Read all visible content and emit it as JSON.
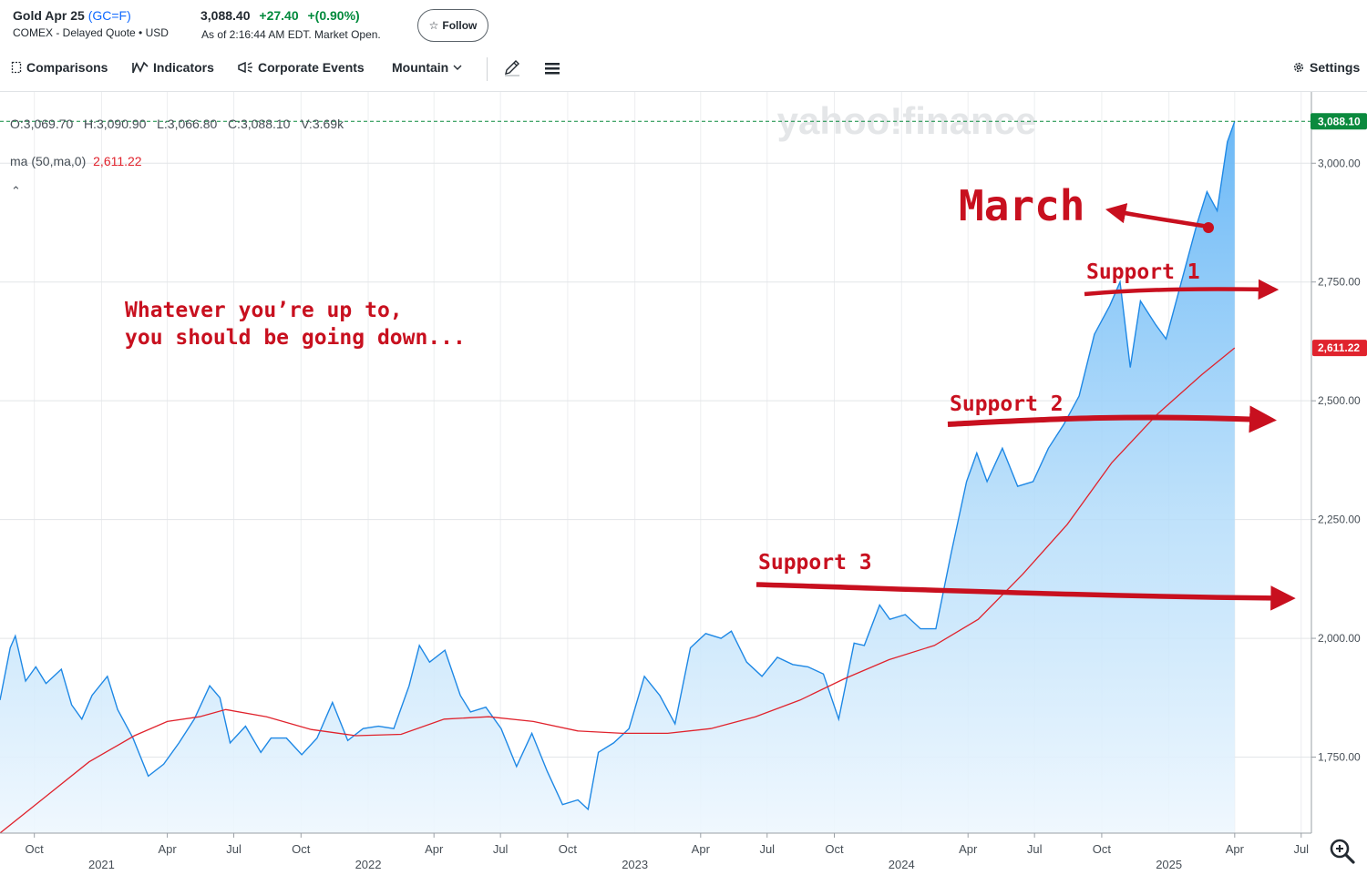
{
  "header": {
    "name": "Gold Apr 25",
    "ticker": "(GC=F)",
    "exchange": "COMEX - Delayed Quote • USD",
    "price": "3,088.40",
    "change": "+27.40",
    "change_pct": "+(0.90%)",
    "as_of": "As of 2:16:44 AM EDT. Market Open.",
    "follow_label": "Follow",
    "follow_icon": "star-outline-icon"
  },
  "toolbar": {
    "comparisons": "Comparisons",
    "indicators": "Indicators",
    "events": "Corporate Events",
    "chart_type": "Mountain",
    "settings": "Settings",
    "icons": [
      "compare-icon",
      "indicators-icon",
      "megaphone-icon",
      "chevron-down-icon",
      "pencil-icon",
      "menu-icon",
      "gear-icon",
      "zoom-icon"
    ]
  },
  "legend": {
    "ohlc": "O:3,069.70   H:3,090.90   L:3,066.80   C:3,088.10   V:3.69k",
    "ma_label": "ma (50,ma,0)",
    "ma_value": "2,611.22"
  },
  "watermark": "yahoo!finance",
  "annotations": {
    "march": "March",
    "caption_line1": "Whatever you’re up to,",
    "caption_line2": "you should be going down...",
    "support1": "Support 1",
    "support2": "Support 2",
    "support3": "Support 3"
  },
  "chart_data": {
    "type": "area",
    "colors": {
      "area_line": "#1e88e5",
      "ma_line": "#e0232d",
      "annotation": "#c8101f",
      "last_price_badge": "#0b8a3e"
    },
    "y_axis": {
      "ylim": [
        1590,
        3150
      ],
      "ticks": [
        1750,
        2000,
        2250,
        2500,
        2750,
        3000
      ],
      "tick_labels": [
        "1,750.00",
        "2,000.00",
        "2,250.00",
        "2,500.00",
        "2,750.00",
        "3,000.00"
      ]
    },
    "x_axis": {
      "month_labels": [
        {
          "date": "2020-10-01",
          "label": "Oct"
        },
        {
          "date": "2021-04-01",
          "label": "Apr"
        },
        {
          "date": "2021-07-01",
          "label": "Jul"
        },
        {
          "date": "2021-10-01",
          "label": "Oct"
        },
        {
          "date": "2022-04-01",
          "label": "Apr"
        },
        {
          "date": "2022-07-01",
          "label": "Jul"
        },
        {
          "date": "2022-10-01",
          "label": "Oct"
        },
        {
          "date": "2023-04-01",
          "label": "Apr"
        },
        {
          "date": "2023-07-01",
          "label": "Jul"
        },
        {
          "date": "2023-10-01",
          "label": "Oct"
        },
        {
          "date": "2024-04-01",
          "label": "Apr"
        },
        {
          "date": "2024-07-01",
          "label": "Jul"
        },
        {
          "date": "2024-10-01",
          "label": "Oct"
        },
        {
          "date": "2025-04-01",
          "label": "Apr"
        },
        {
          "date": "2025-07-01",
          "label": "Jul"
        }
      ],
      "year_labels": [
        {
          "date": "2021-01-01",
          "label": "2021"
        },
        {
          "date": "2022-01-01",
          "label": "2022"
        },
        {
          "date": "2023-01-01",
          "label": "2023"
        },
        {
          "date": "2024-01-01",
          "label": "2024"
        },
        {
          "date": "2025-01-01",
          "label": "2025"
        }
      ],
      "range": [
        "2020-08-15",
        "2025-07-15"
      ]
    },
    "series": [
      {
        "values": [
          [
            "2020-08-15",
            1870
          ],
          [
            "2020-08-29",
            1980
          ],
          [
            "2020-09-05",
            2005
          ],
          [
            "2020-09-19",
            1910
          ],
          [
            "2020-10-03",
            1940
          ],
          [
            "2020-10-17",
            1905
          ],
          [
            "2020-11-07",
            1935
          ],
          [
            "2020-11-21",
            1860
          ],
          [
            "2020-12-05",
            1830
          ],
          [
            "2020-12-19",
            1880
          ],
          [
            "2021-01-09",
            1920
          ],
          [
            "2021-01-23",
            1850
          ],
          [
            "2021-02-13",
            1790
          ],
          [
            "2021-03-06",
            1710
          ],
          [
            "2021-03-27",
            1735
          ],
          [
            "2021-04-17",
            1780
          ],
          [
            "2021-05-08",
            1830
          ],
          [
            "2021-05-29",
            1900
          ],
          [
            "2021-06-12",
            1875
          ],
          [
            "2021-06-26",
            1780
          ],
          [
            "2021-07-17",
            1815
          ],
          [
            "2021-08-07",
            1760
          ],
          [
            "2021-08-21",
            1790
          ],
          [
            "2021-09-11",
            1790
          ],
          [
            "2021-10-02",
            1755
          ],
          [
            "2021-10-23",
            1790
          ],
          [
            "2021-11-13",
            1865
          ],
          [
            "2021-12-04",
            1785
          ],
          [
            "2021-12-25",
            1810
          ],
          [
            "2022-01-15",
            1815
          ],
          [
            "2022-02-05",
            1810
          ],
          [
            "2022-02-26",
            1900
          ],
          [
            "2022-03-12",
            1985
          ],
          [
            "2022-03-26",
            1950
          ],
          [
            "2022-04-16",
            1975
          ],
          [
            "2022-05-07",
            1880
          ],
          [
            "2022-05-21",
            1845
          ],
          [
            "2022-06-11",
            1855
          ],
          [
            "2022-07-02",
            1810
          ],
          [
            "2022-07-23",
            1730
          ],
          [
            "2022-08-13",
            1800
          ],
          [
            "2022-09-03",
            1720
          ],
          [
            "2022-09-24",
            1650
          ],
          [
            "2022-10-15",
            1660
          ],
          [
            "2022-10-29",
            1640
          ],
          [
            "2022-11-12",
            1760
          ],
          [
            "2022-12-03",
            1780
          ],
          [
            "2022-12-24",
            1810
          ],
          [
            "2023-01-14",
            1920
          ],
          [
            "2023-02-04",
            1880
          ],
          [
            "2023-02-25",
            1820
          ],
          [
            "2023-03-18",
            1980
          ],
          [
            "2023-04-08",
            2010
          ],
          [
            "2023-04-29",
            2000
          ],
          [
            "2023-05-13",
            2015
          ],
          [
            "2023-06-03",
            1950
          ],
          [
            "2023-06-24",
            1920
          ],
          [
            "2023-07-15",
            1960
          ],
          [
            "2023-08-05",
            1945
          ],
          [
            "2023-08-26",
            1940
          ],
          [
            "2023-09-16",
            1925
          ],
          [
            "2023-10-07",
            1830
          ],
          [
            "2023-10-28",
            1990
          ],
          [
            "2023-11-11",
            1985
          ],
          [
            "2023-12-02",
            2070
          ],
          [
            "2023-12-16",
            2040
          ],
          [
            "2024-01-06",
            2050
          ],
          [
            "2024-01-27",
            2020
          ],
          [
            "2024-02-17",
            2020
          ],
          [
            "2024-03-09",
            2180
          ],
          [
            "2024-03-30",
            2330
          ],
          [
            "2024-04-13",
            2390
          ],
          [
            "2024-04-27",
            2330
          ],
          [
            "2024-05-18",
            2400
          ],
          [
            "2024-06-08",
            2320
          ],
          [
            "2024-06-29",
            2330
          ],
          [
            "2024-07-20",
            2400
          ],
          [
            "2024-08-10",
            2450
          ],
          [
            "2024-08-31",
            2510
          ],
          [
            "2024-09-21",
            2640
          ],
          [
            "2024-10-12",
            2700
          ],
          [
            "2024-10-26",
            2750
          ],
          [
            "2024-11-09",
            2570
          ],
          [
            "2024-11-23",
            2710
          ],
          [
            "2024-12-14",
            2660
          ],
          [
            "2024-12-28",
            2630
          ],
          [
            "2025-01-18",
            2750
          ],
          [
            "2025-02-08",
            2870
          ],
          [
            "2025-02-22",
            2940
          ],
          [
            "2025-03-08",
            2900
          ],
          [
            "2025-03-22",
            3045
          ],
          [
            "2025-04-01",
            3088.1
          ]
        ]
      },
      {
        "name": "ma (50,ma,0)",
        "values": [
          [
            "2020-08-15",
            1590
          ],
          [
            "2020-10-15",
            1665
          ],
          [
            "2020-12-15",
            1740
          ],
          [
            "2021-02-15",
            1795
          ],
          [
            "2021-04-01",
            1825
          ],
          [
            "2021-05-15",
            1835
          ],
          [
            "2021-06-20",
            1850
          ],
          [
            "2021-08-15",
            1835
          ],
          [
            "2021-10-15",
            1808
          ],
          [
            "2021-12-15",
            1795
          ],
          [
            "2022-02-15",
            1798
          ],
          [
            "2022-04-15",
            1830
          ],
          [
            "2022-06-15",
            1835
          ],
          [
            "2022-08-15",
            1825
          ],
          [
            "2022-10-15",
            1805
          ],
          [
            "2022-12-15",
            1800
          ],
          [
            "2023-02-15",
            1800
          ],
          [
            "2023-04-15",
            1810
          ],
          [
            "2023-06-15",
            1835
          ],
          [
            "2023-08-15",
            1870
          ],
          [
            "2023-10-15",
            1915
          ],
          [
            "2023-12-15",
            1955
          ],
          [
            "2024-02-15",
            1985
          ],
          [
            "2024-04-15",
            2040
          ],
          [
            "2024-06-15",
            2135
          ],
          [
            "2024-08-15",
            2240
          ],
          [
            "2024-10-15",
            2370
          ],
          [
            "2024-12-15",
            2470
          ],
          [
            "2025-02-15",
            2555
          ],
          [
            "2025-04-01",
            2611.22
          ]
        ]
      }
    ],
    "last_price": "3,088.10",
    "ma_last": "2,611.22",
    "grid": true
  }
}
